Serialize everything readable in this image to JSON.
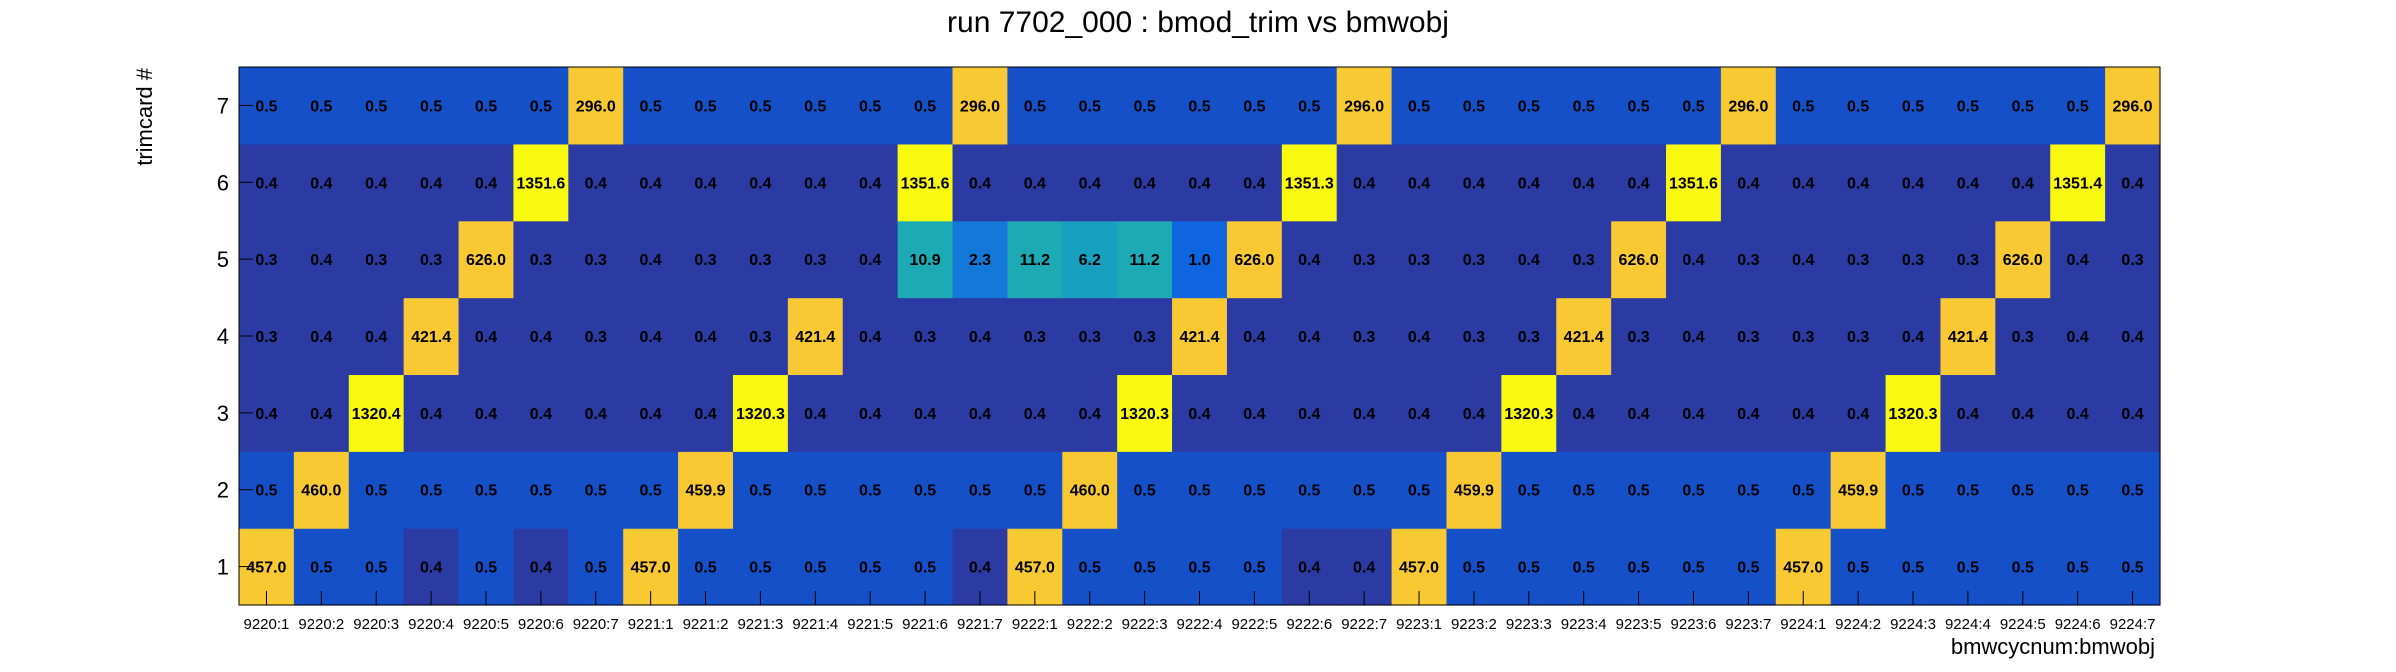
{
  "chart_data": {
    "type": "heatmap",
    "title": "run 7702_000 : bmod_trim vs bmwobj",
    "xlabel": "bmwcycnum:bmwobj",
    "ylabel": "trimcard #",
    "y_categories": [
      "1",
      "2",
      "3",
      "4",
      "5",
      "6",
      "7"
    ],
    "x_categories": [
      "9220:1",
      "9220:2",
      "9220:3",
      "9220:4",
      "9220:5",
      "9220:6",
      "9220:7",
      "9221:1",
      "9221:2",
      "9221:3",
      "9221:4",
      "9221:5",
      "9221:6",
      "9221:7",
      "9222:1",
      "9222:2",
      "9222:3",
      "9222:4",
      "9222:5",
      "9222:6",
      "9222:7",
      "9223:1",
      "9223:2",
      "9223:3",
      "9223:4",
      "9223:5",
      "9223:6",
      "9223:7",
      "9224:1",
      "9224:2",
      "9224:3",
      "9224:4",
      "9224:5",
      "9224:6",
      "9224:7"
    ],
    "values": [
      [
        "457.0",
        "0.5",
        "0.5",
        "0.4",
        "0.5",
        "0.4",
        "0.5",
        "457.0",
        "0.5",
        "0.5",
        "0.5",
        "0.5",
        "0.5",
        "0.4",
        "457.0",
        "0.5",
        "0.5",
        "0.5",
        "0.5",
        "0.4",
        "0.4",
        "457.0",
        "0.5",
        "0.5",
        "0.5",
        "0.5",
        "0.5",
        "0.5",
        "457.0",
        "0.5",
        "0.5",
        "0.5",
        "0.5",
        "0.5",
        "0.5"
      ],
      [
        "0.5",
        "460.0",
        "0.5",
        "0.5",
        "0.5",
        "0.5",
        "0.5",
        "0.5",
        "459.9",
        "0.5",
        "0.5",
        "0.5",
        "0.5",
        "0.5",
        "0.5",
        "460.0",
        "0.5",
        "0.5",
        "0.5",
        "0.5",
        "0.5",
        "0.5",
        "459.9",
        "0.5",
        "0.5",
        "0.5",
        "0.5",
        "0.5",
        "0.5",
        "459.9",
        "0.5",
        "0.5",
        "0.5",
        "0.5",
        "0.5"
      ],
      [
        "0.4",
        "0.4",
        "1320.4",
        "0.4",
        "0.4",
        "0.4",
        "0.4",
        "0.4",
        "0.4",
        "1320.3",
        "0.4",
        "0.4",
        "0.4",
        "0.4",
        "0.4",
        "0.4",
        "1320.3",
        "0.4",
        "0.4",
        "0.4",
        "0.4",
        "0.4",
        "0.4",
        "1320.3",
        "0.4",
        "0.4",
        "0.4",
        "0.4",
        "0.4",
        "0.4",
        "1320.3",
        "0.4",
        "0.4",
        "0.4",
        "0.4"
      ],
      [
        "0.3",
        "0.4",
        "0.4",
        "421.4",
        "0.4",
        "0.4",
        "0.3",
        "0.4",
        "0.4",
        "0.3",
        "421.4",
        "0.4",
        "0.3",
        "0.4",
        "0.3",
        "0.3",
        "0.3",
        "421.4",
        "0.4",
        "0.4",
        "0.3",
        "0.4",
        "0.3",
        "0.3",
        "421.4",
        "0.3",
        "0.4",
        "0.3",
        "0.3",
        "0.3",
        "0.4",
        "421.4",
        "0.3",
        "0.4",
        "0.4"
      ],
      [
        "0.3",
        "0.4",
        "0.3",
        "0.3",
        "626.0",
        "0.3",
        "0.3",
        "0.4",
        "0.3",
        "0.3",
        "0.3",
        "0.4",
        "10.9",
        "2.3",
        "11.2",
        "6.2",
        "11.2",
        "1.0",
        "626.0",
        "0.4",
        "0.3",
        "0.3",
        "0.3",
        "0.4",
        "0.3",
        "626.0",
        "0.4",
        "0.3",
        "0.4",
        "0.3",
        "0.3",
        "0.3",
        "626.0",
        "0.4",
        "0.3"
      ],
      [
        "0.4",
        "0.4",
        "0.4",
        "0.4",
        "0.4",
        "1351.6",
        "0.4",
        "0.4",
        "0.4",
        "0.4",
        "0.4",
        "0.4",
        "1351.6",
        "0.4",
        "0.4",
        "0.4",
        "0.4",
        "0.4",
        "0.4",
        "1351.3",
        "0.4",
        "0.4",
        "0.4",
        "0.4",
        "0.4",
        "0.4",
        "1351.6",
        "0.4",
        "0.4",
        "0.4",
        "0.4",
        "0.4",
        "0.4",
        "1351.4",
        "0.4"
      ],
      [
        "0.5",
        "0.5",
        "0.5",
        "0.5",
        "0.5",
        "0.5",
        "296.0",
        "0.5",
        "0.5",
        "0.5",
        "0.5",
        "0.5",
        "0.5",
        "296.0",
        "0.5",
        "0.5",
        "0.5",
        "0.5",
        "0.5",
        "0.5",
        "296.0",
        "0.5",
        "0.5",
        "0.5",
        "0.5",
        "0.5",
        "0.5",
        "296.0",
        "0.5",
        "0.5",
        "0.5",
        "0.5",
        "0.5",
        "0.5",
        "296.0"
      ]
    ],
    "grid": false,
    "legend": "none"
  }
}
